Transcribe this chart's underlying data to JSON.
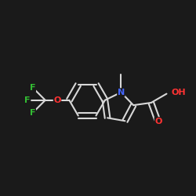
{
  "background_color": "#1a1a1a",
  "bond_color": "#d8d8d8",
  "atom_colors": {
    "N": "#4466ff",
    "O": "#ff3333",
    "F": "#33bb33",
    "C": "#d8d8d8"
  },
  "figsize": [
    2.5,
    2.5
  ],
  "dpi": 100
}
